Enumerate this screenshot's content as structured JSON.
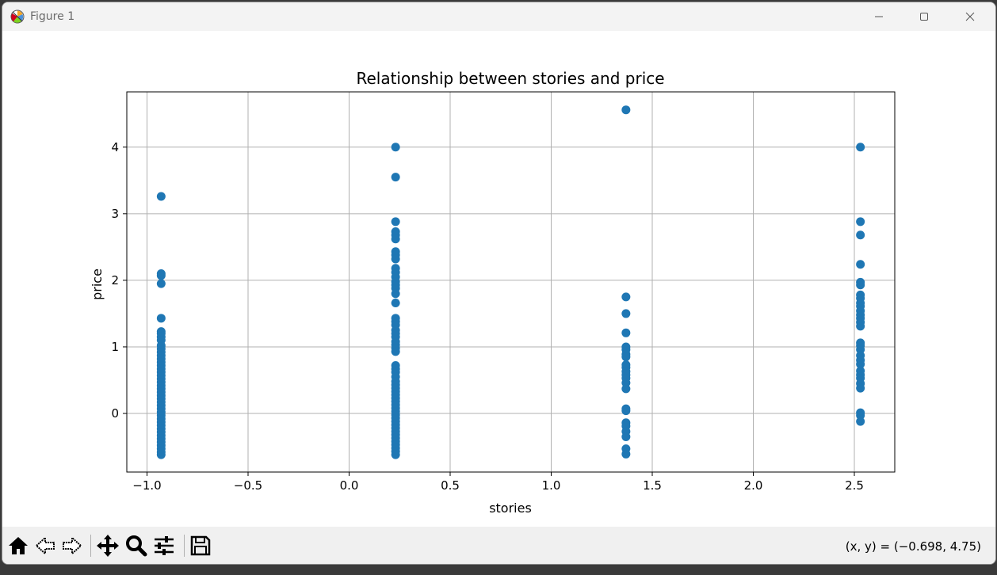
{
  "window": {
    "title": "Figure 1"
  },
  "toolbar": {
    "tools": [
      {
        "name": "home-icon",
        "label": "Home"
      },
      {
        "name": "back-icon",
        "label": "Back"
      },
      {
        "name": "forward-icon",
        "label": "Forward"
      },
      {
        "name": "pan-icon",
        "label": "Pan"
      },
      {
        "name": "zoom-icon",
        "label": "Zoom"
      },
      {
        "name": "configure-subplots-icon",
        "label": "Configure subplots"
      },
      {
        "name": "save-icon",
        "label": "Save"
      }
    ],
    "coords": "(x, y) = (−0.698, 4.75)"
  },
  "colors": {
    "marker": "#1f77b4",
    "grid": "#b0b0b0"
  },
  "chart_data": {
    "type": "scatter",
    "title": "Relationship between stories and price",
    "xlabel": "stories",
    "ylabel": "price",
    "xlim": [
      -1.1,
      2.7
    ],
    "ylim": [
      -0.88,
      4.83
    ],
    "xticks": [
      "−1.0",
      "−0.5",
      "0.0",
      "0.5",
      "1.0",
      "1.5",
      "2.0",
      "2.5"
    ],
    "yticks": [
      "0",
      "1",
      "2",
      "3",
      "4"
    ],
    "grid": true,
    "series": [
      {
        "x": -0.93,
        "y": [
          3.26,
          2.1,
          2.07,
          1.95,
          1.43,
          1.23,
          1.2,
          1.15,
          1.1,
          1.02,
          0.97,
          0.92,
          0.87,
          0.82,
          0.77,
          0.72,
          0.67,
          0.62,
          0.57,
          0.52,
          0.47,
          0.42,
          0.37,
          0.32,
          0.27,
          0.22,
          0.17,
          0.12,
          0.07,
          0.02,
          -0.03,
          -0.08,
          -0.13,
          -0.18,
          -0.23,
          -0.28,
          -0.33,
          -0.38,
          -0.43,
          -0.48,
          -0.53,
          -0.58,
          -0.62
        ]
      },
      {
        "x": 0.23,
        "y": [
          4.0,
          3.55,
          2.88,
          2.73,
          2.68,
          2.62,
          2.43,
          2.38,
          2.32,
          2.18,
          2.12,
          2.05,
          1.98,
          1.93,
          1.88,
          1.8,
          1.66,
          1.43,
          1.38,
          1.33,
          1.25,
          1.2,
          1.15,
          1.08,
          1.03,
          0.98,
          0.93,
          0.72,
          0.67,
          0.62,
          0.55,
          0.48,
          0.43,
          0.38,
          0.33,
          0.28,
          0.23,
          0.18,
          0.13,
          0.08,
          0.03,
          -0.02,
          -0.07,
          -0.12,
          -0.17,
          -0.22,
          -0.27,
          -0.32,
          -0.37,
          -0.42,
          -0.47,
          -0.52,
          -0.57,
          -0.62
        ]
      },
      {
        "x": 1.37,
        "y": [
          4.56,
          1.75,
          1.5,
          1.21,
          1.0,
          0.96,
          0.89,
          0.85,
          0.73,
          0.69,
          0.63,
          0.58,
          0.53,
          0.46,
          0.37,
          0.07,
          0.04,
          -0.14,
          -0.19,
          -0.27,
          -0.35,
          -0.53,
          -0.61
        ]
      },
      {
        "x": 2.53,
        "y": [
          4.0,
          2.88,
          2.68,
          2.24,
          1.97,
          1.93,
          1.78,
          1.73,
          1.66,
          1.61,
          1.54,
          1.48,
          1.43,
          1.37,
          1.31,
          1.06,
          1.02,
          0.96,
          0.87,
          0.8,
          0.74,
          0.64,
          0.58,
          0.53,
          0.45,
          0.38,
          0.01,
          -0.03,
          -0.12
        ]
      }
    ]
  }
}
